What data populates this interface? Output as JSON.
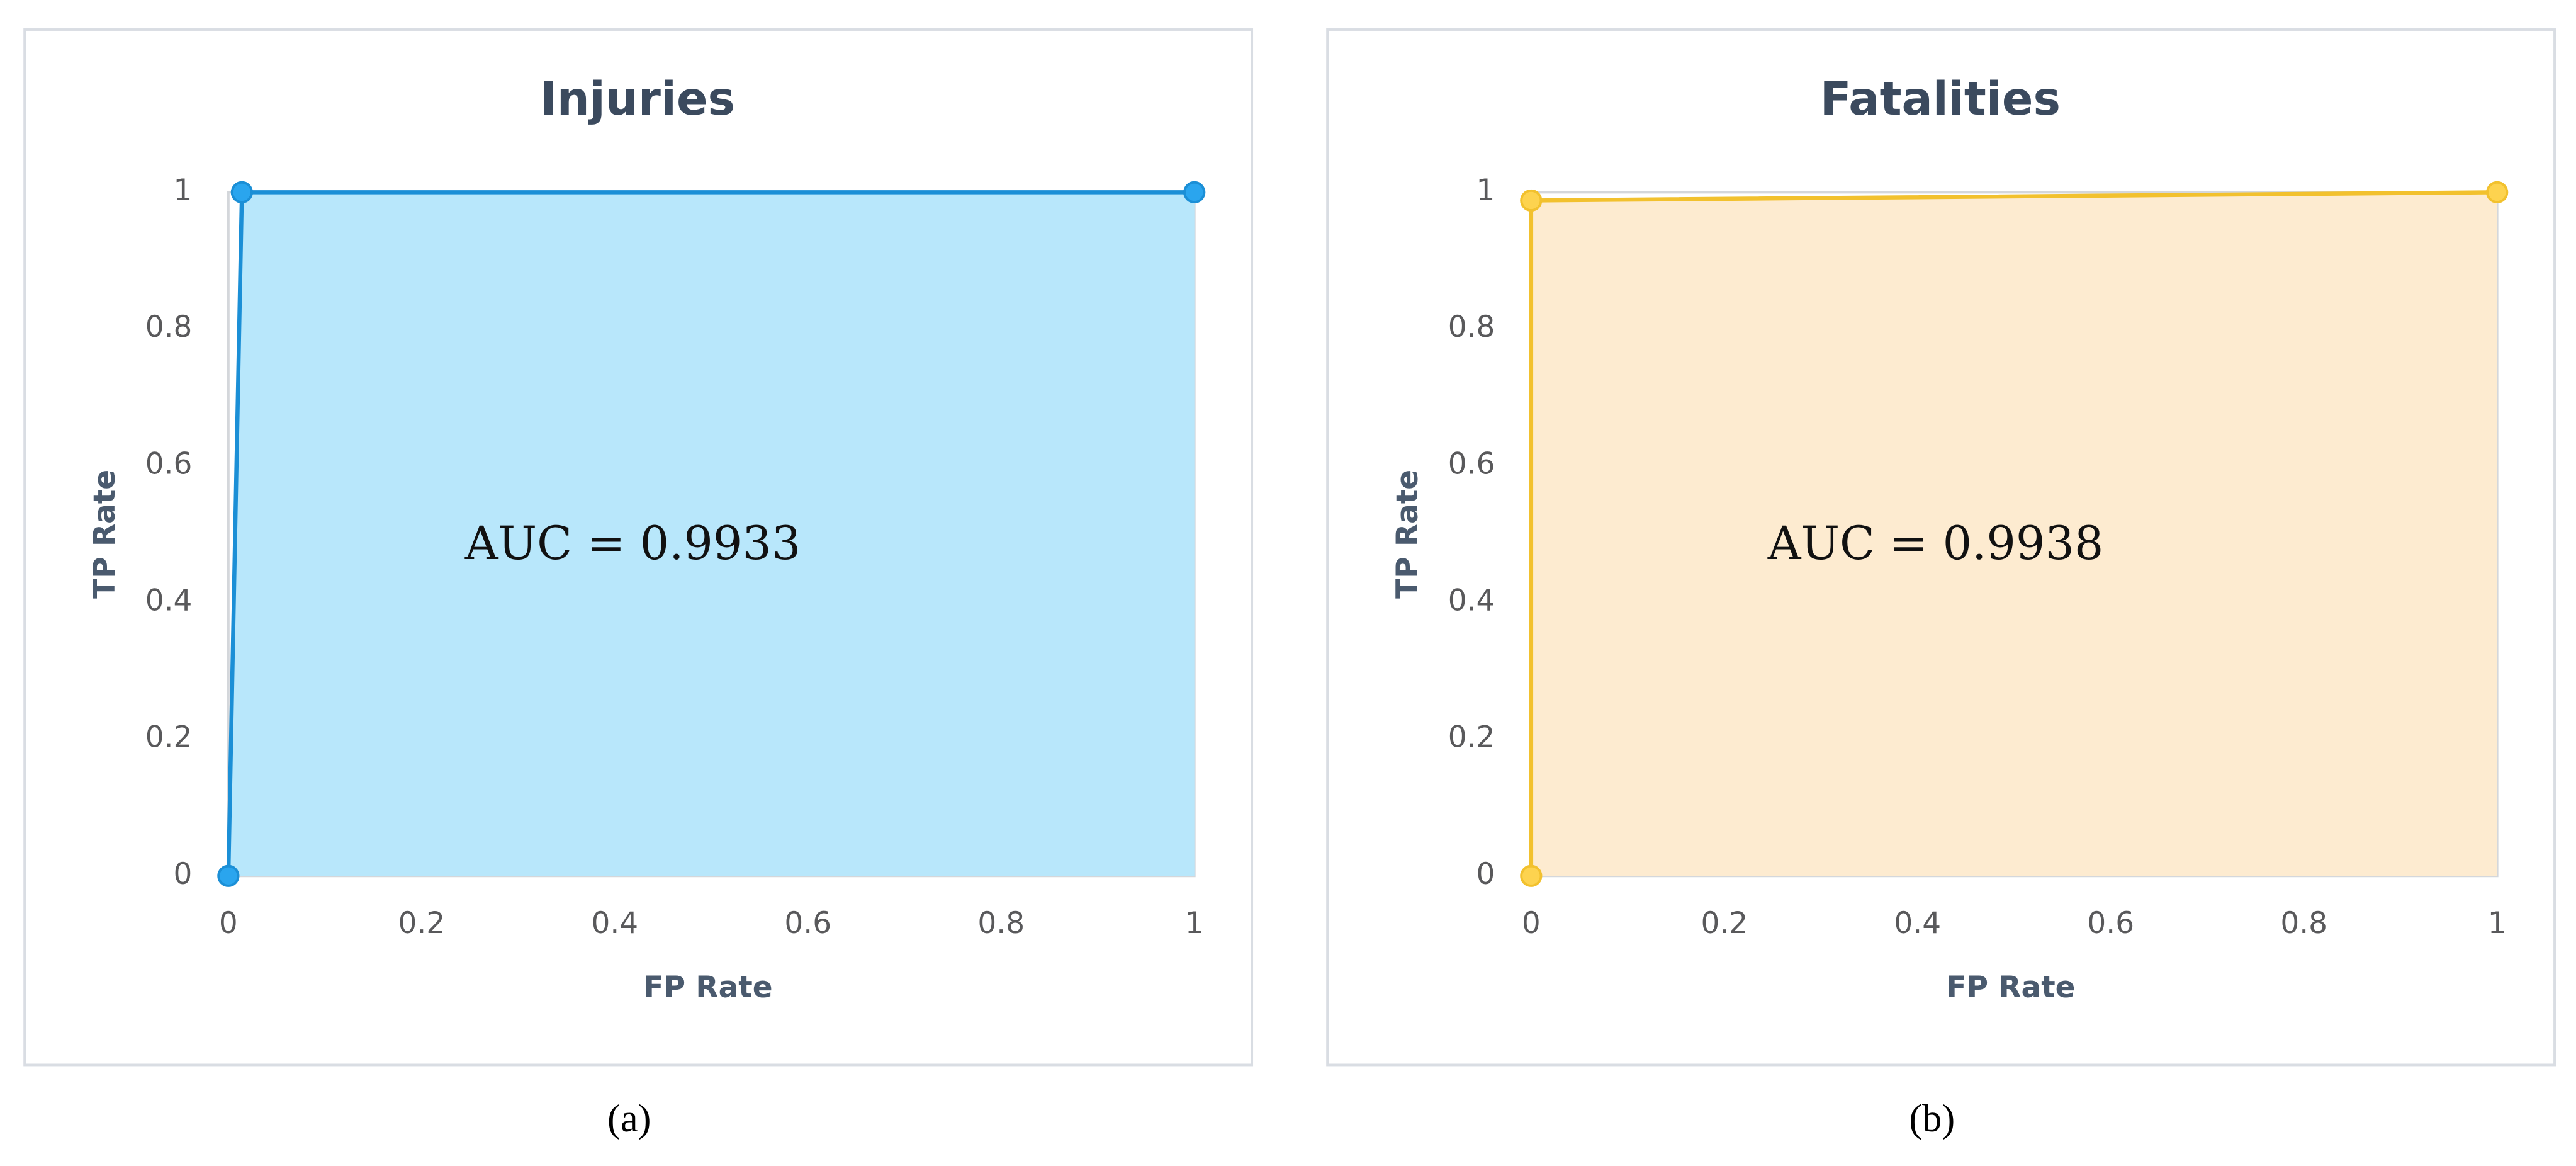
{
  "chart_data": [
    {
      "type": "area",
      "title": "Injuries",
      "x_label": "FP Rate",
      "y_label": "TP Rate",
      "annotation": "AUC = 0.9933",
      "caption": "(a)",
      "series": [
        {
          "color": "#1b8fd6",
          "fill": "#b8e7fb",
          "marker_color": "#2aa5ee",
          "x": [
            0,
            0.014,
            1
          ],
          "values": [
            0,
            1,
            1
          ]
        }
      ],
      "xlim": [
        0,
        1
      ],
      "ylim": [
        0,
        1
      ],
      "xticks": [
        0,
        0.2,
        0.4,
        0.6,
        0.8,
        1
      ],
      "yticks": [
        0,
        0.2,
        0.4,
        0.6,
        0.8,
        1
      ]
    },
    {
      "type": "area",
      "title": "Fatalities",
      "x_label": "FP Rate",
      "y_label": "TP Rate",
      "annotation": "AUC = 0.9938",
      "caption": "(b)",
      "series": [
        {
          "color": "#f2c12e",
          "fill": "#fdebd0",
          "marker_color": "#fdd34f",
          "x": [
            0,
            0,
            1
          ],
          "values": [
            0,
            0.988,
            1
          ]
        }
      ],
      "xlim": [
        0,
        1
      ],
      "ylim": [
        0,
        1
      ],
      "xticks": [
        0,
        0.2,
        0.4,
        0.6,
        0.8,
        1
      ],
      "yticks": [
        0,
        0.2,
        0.4,
        0.6,
        0.8,
        1
      ]
    }
  ]
}
